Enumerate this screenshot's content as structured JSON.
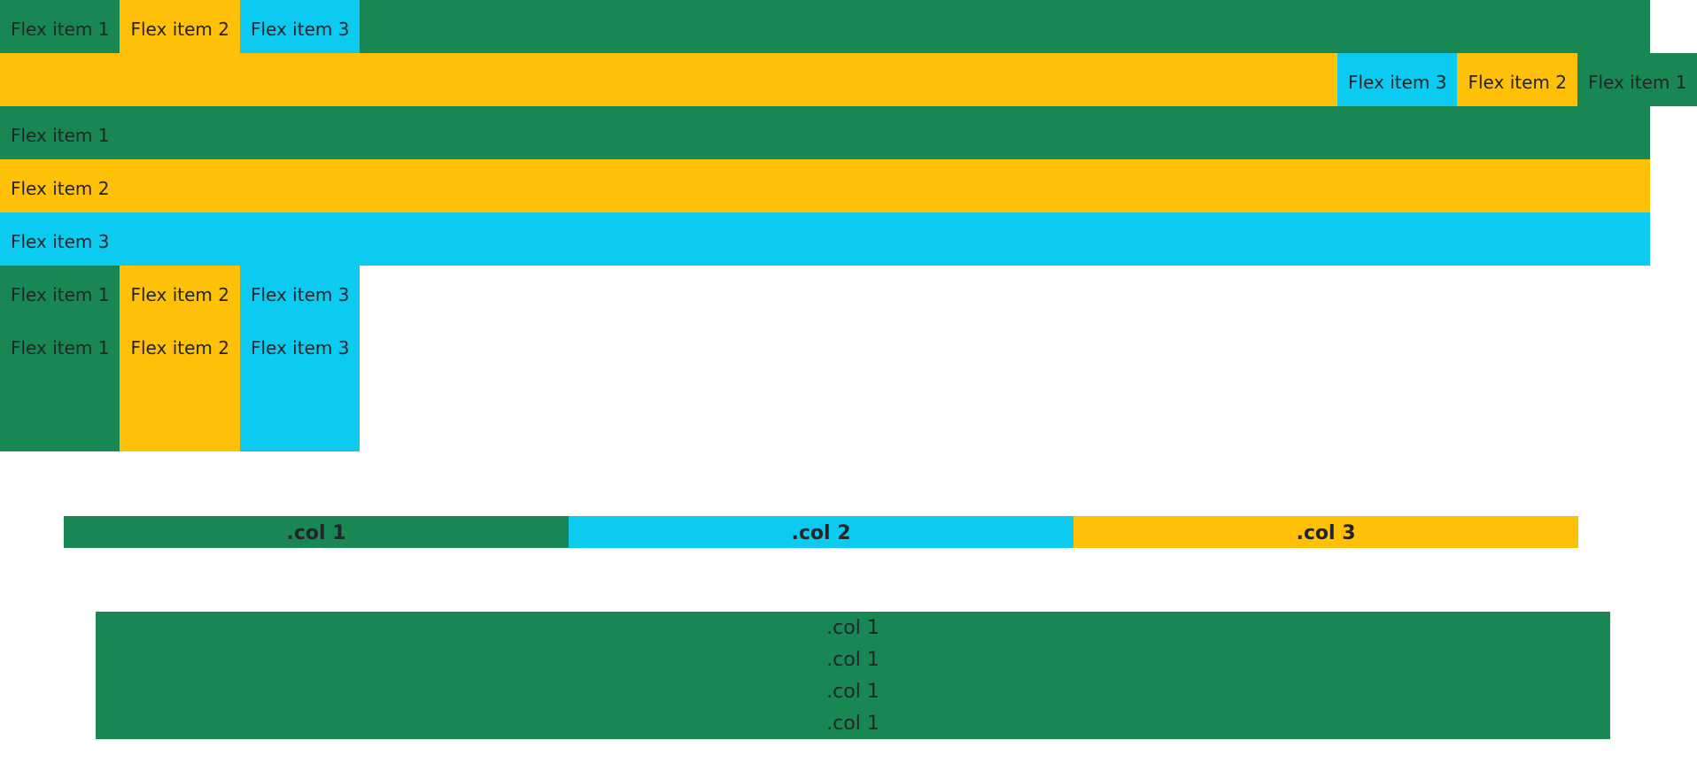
{
  "colors": {
    "green": "#198754",
    "yellow": "#ffc107",
    "cyan": "#0dcaf0"
  },
  "row1": {
    "items": [
      "Flex item 1",
      "Flex item 2",
      "Flex item 3"
    ]
  },
  "row2": {
    "items": [
      "Flex item 3",
      "Flex item 2",
      "Flex item 1"
    ]
  },
  "stacked": {
    "items": [
      "Flex item 1",
      "Flex item 2",
      "Flex item 3"
    ]
  },
  "row6": {
    "top": [
      "Flex item 1",
      "Flex item 2",
      "Flex item 3"
    ],
    "bottom": [
      "Flex item 1",
      "Flex item 2",
      "Flex item 3"
    ]
  },
  "grid": {
    "cols": [
      ".col 1",
      ".col 2",
      ".col 3"
    ]
  },
  "stack_block": {
    "rows": [
      ".col 1",
      ".col 1",
      ".col 1",
      ".col 1"
    ]
  }
}
